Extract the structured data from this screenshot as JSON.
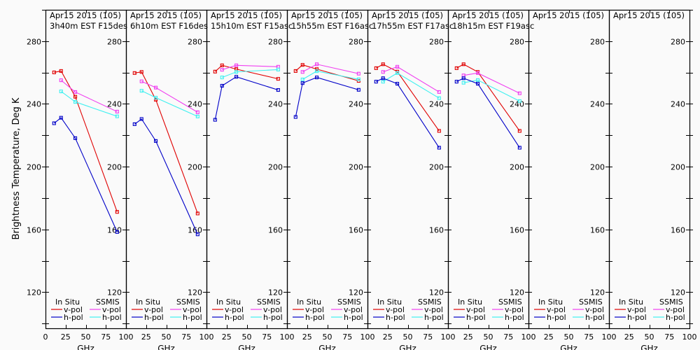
{
  "chart_data": {
    "type": "line",
    "ylabel": "Brightness Temperature, Deg K",
    "xlabel": "GHz",
    "ylim": [
      97,
      300
    ],
    "xlim": [
      0,
      100
    ],
    "yticks": [
      120,
      160,
      200,
      240,
      280
    ],
    "xtick_labels_first": [
      "0",
      "25",
      "50",
      "75",
      "100"
    ],
    "xtick_labels": [
      "25",
      "50",
      "75",
      "100"
    ],
    "x": [
      10.7,
      19.35,
      37.0,
      89.0
    ],
    "legend": {
      "group1": "In Situ",
      "group2": "SSMIS",
      "vpol": "v-pol",
      "hpol": "h-pol"
    },
    "series_styles": {
      "insitu_v": {
        "name": "In Situ v-pol",
        "color": "#e00000"
      },
      "insitu_h": {
        "name": "In Situ h-pol",
        "color": "#0000c8"
      },
      "ssmis_v": {
        "name": "SSMIS v-pol",
        "color": "#f040f0"
      },
      "ssmis_h": {
        "name": "SSMIS h-pol",
        "color": "#40f0f0"
      }
    },
    "panels": [
      {
        "title1": "Apr15 2015 (105)",
        "title2": "3h40m EST F15des",
        "series": {
          "insitu_v": [
            260.1,
            261.0,
            244.6,
            171.2
          ],
          "insitu_h": [
            227.7,
            231.2,
            218.2,
            158.4
          ],
          "ssmis_v": [
            null,
            255.1,
            247.6,
            235.1
          ],
          "ssmis_h": [
            null,
            248.0,
            241.3,
            232.1
          ]
        }
      },
      {
        "title1": "Apr15 2015 (105)",
        "title2": "6h10m EST F16des",
        "series": {
          "insitu_v": [
            259.7,
            260.4,
            242.7,
            170.2
          ],
          "insitu_h": [
            227.1,
            230.4,
            216.4,
            156.9
          ],
          "ssmis_v": [
            null,
            254.4,
            250.4,
            234.7
          ],
          "ssmis_h": [
            null,
            248.4,
            244.0,
            232.0
          ]
        }
      },
      {
        "title1": "Apr15 2015 (105)",
        "title2": "15h10m EST F15asc",
        "series": {
          "insitu_v": [
            260.6,
            264.6,
            262.2,
            256.0
          ],
          "insitu_h": [
            229.9,
            251.6,
            257.3,
            248.9
          ],
          "ssmis_v": [
            null,
            261.8,
            264.6,
            263.7
          ],
          "ssmis_h": [
            null,
            256.9,
            260.4,
            261.9
          ]
        }
      },
      {
        "title1": "Apr15 2015 (105)",
        "title2": "15h55m EST F16asc",
        "series": {
          "insitu_v": [
            261.0,
            264.9,
            262.2,
            254.7
          ],
          "insitu_h": [
            231.7,
            253.3,
            256.9,
            249.0
          ],
          "ssmis_v": [
            null,
            260.4,
            265.3,
            259.3
          ],
          "ssmis_h": [
            null,
            255.6,
            260.9,
            255.7
          ]
        }
      },
      {
        "title1": "Apr15 2015 (105)",
        "title2": "17h55m EST F17asc",
        "series": {
          "insitu_v": [
            262.8,
            265.3,
            260.6,
            222.8
          ],
          "insitu_h": [
            254.2,
            256.4,
            252.9,
            212.1
          ],
          "ssmis_v": [
            null,
            260.4,
            263.7,
            247.6
          ],
          "ssmis_h": [
            null,
            254.2,
            259.7,
            243.7
          ]
        }
      },
      {
        "title1": "Apr15 2015 (105)",
        "title2": "18h15m EST F19asc",
        "series": {
          "insitu_v": [
            262.8,
            265.3,
            260.4,
            222.8
          ],
          "insitu_h": [
            254.2,
            256.4,
            252.9,
            212.1
          ],
          "ssmis_v": [
            null,
            258.2,
            259.7,
            246.8
          ],
          "ssmis_h": [
            null,
            253.5,
            255.2,
            241.8
          ]
        }
      },
      {
        "title1": "Apr15 2015 (105)",
        "title2": "",
        "series": {}
      },
      {
        "title1": "Apr15 2015 (105)",
        "title2": "",
        "series": {}
      }
    ]
  }
}
